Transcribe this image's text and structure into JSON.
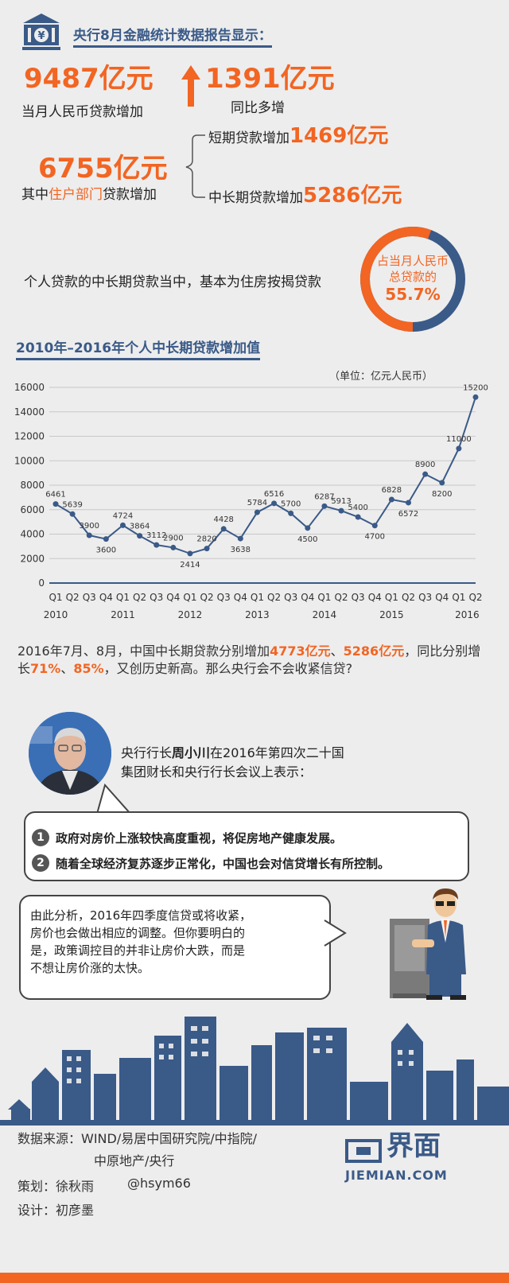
{
  "header": {
    "bank_icon": "bank-icon",
    "yuan_symbol": "¥",
    "title": "央行8月金融统计数据报告显示："
  },
  "stats": {
    "rmb_loan_value": "9487亿元",
    "rmb_loan_label": "当月人民币贷款增加",
    "yoy_value": "1391亿元",
    "yoy_label": "同比多增",
    "household_value": "6755亿元",
    "household_label_pre": "其中",
    "household_label_hl": "住户部门",
    "household_label_post": "贷款增加",
    "short_label": "短期贷款增加",
    "short_value": "1469亿元",
    "long_label": "中长期贷款增加",
    "long_value": "5286亿元"
  },
  "share": {
    "text": "个人贷款的中长期贷款当中，基本为住房按揭贷款",
    "ring_line1": "占当月人民币",
    "ring_line2": "总贷款的",
    "ring_value": "55.7%",
    "fraction": 0.557,
    "ring_colors": {
      "filled": "#f26522",
      "rest": "#3a5a88"
    }
  },
  "chart_data": {
    "type": "line",
    "title": "2010年–2016年个人中长期贷款增加值",
    "unit_note": "（单位：亿元人民币）",
    "ylim": [
      0,
      16000
    ],
    "yticks": [
      0,
      2000,
      4000,
      6000,
      8000,
      10000,
      12000,
      14000,
      16000
    ],
    "quarters": [
      "Q1",
      "Q2",
      "Q3",
      "Q4",
      "Q1",
      "Q2",
      "Q3",
      "Q4",
      "Q1",
      "Q2",
      "Q3",
      "Q4",
      "Q1",
      "Q2",
      "Q3",
      "Q4",
      "Q1",
      "Q2",
      "Q3",
      "Q4",
      "Q1",
      "Q2",
      "Q3",
      "Q4",
      "Q1",
      "Q2"
    ],
    "years": [
      "2010",
      "2011",
      "2012",
      "2013",
      "2014",
      "2015",
      "2016"
    ],
    "values": [
      6461,
      5639,
      3900,
      3600,
      4724,
      3864,
      3112,
      2900,
      2414,
      2820,
      4428,
      3638,
      5784,
      6516,
      5700,
      4500,
      6287,
      5913,
      5400,
      4700,
      6828,
      6572,
      8900,
      8200,
      11000,
      15200
    ],
    "grid": true,
    "colors": {
      "line": "#3a5a88",
      "grid": "#c8c8c8",
      "axis": "#3a5a88"
    }
  },
  "analysis": {
    "p_pre": "2016年7月、8月，中国中长期贷款分别增加",
    "v1": "4773亿元",
    "sep1": "、",
    "v2": "5286亿元",
    "p_mid": "，同比分别增长",
    "r1": "71%",
    "sep2": "、",
    "r2": "85%",
    "p_post": "，又创历史新高。那么央行会不会收紧信贷?"
  },
  "governor": {
    "avatar_icon": "governor-avatar",
    "line1_pre": "央行行长",
    "name": "周小川",
    "line1_post": "在2016年第四次二十国",
    "line2": "集团财长和央行行长会议上表示：",
    "points": [
      {
        "num": "1",
        "text": "政府对房价上涨较快高度重视，将促房地产健康发展。"
      },
      {
        "num": "2",
        "text": "随着全球经济复苏逐步正常化，中国也会对信贷增长有所控制。"
      }
    ]
  },
  "conclusion": {
    "lines": [
      "由此分析，2016年四季度信贷或将收紧，",
      "房价也会做出相应的调整。但你要明白的",
      "是，政策调控目的并非让房价大跌，而是",
      "不想让房价涨的太快。"
    ],
    "figure_icon": "analyst-figure-icon"
  },
  "skyline": {
    "icon": "city-skyline-icon",
    "color": "#3a5a88"
  },
  "footer": {
    "source_label": "数据来源：WIND/易居中国研究院/中指院/",
    "source_line2": "中原地产/央行",
    "planner": "策划：徐秋雨",
    "handle": "@hsym66",
    "designer": "设计：初彦墨",
    "logo_cn": "界面",
    "logo_en": "JIEMIAN.COM"
  }
}
